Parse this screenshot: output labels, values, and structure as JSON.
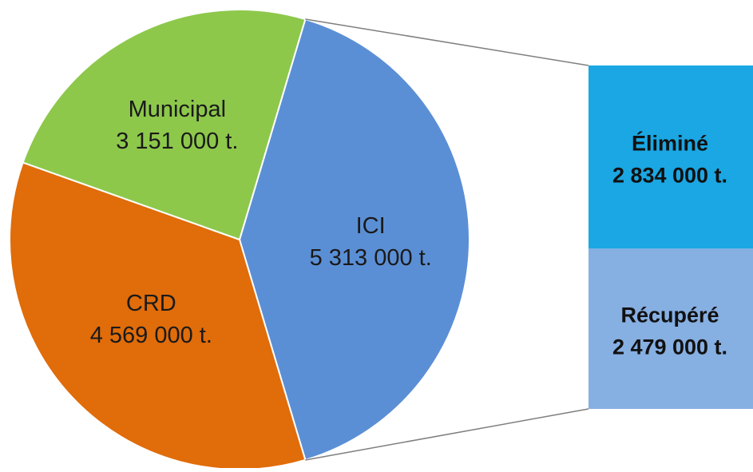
{
  "chart_data": {
    "type": "pie",
    "title": "",
    "slices": [
      {
        "label": "ICI",
        "value_text": "5 313 000 t.",
        "value": 5313000,
        "color": "#5b8fd5"
      },
      {
        "label": "CRD",
        "value_text": "4 569 000 t.",
        "value": 4569000,
        "color": "#e06c0a"
      },
      {
        "label": "Municipal",
        "value_text": "3 151 000 t.",
        "value": 3151000,
        "color": "#8dc84b"
      }
    ],
    "breakdown": {
      "of": "ICI",
      "type": "stacked-bar",
      "segments": [
        {
          "label": "Éliminé",
          "value_text": "2 834 000 t.",
          "value": 2834000,
          "color": "#1aa7e3"
        },
        {
          "label": "Récupéré",
          "value_text": "2 479 000 t.",
          "value": 2479000,
          "color": "#86afe2"
        }
      ]
    }
  }
}
